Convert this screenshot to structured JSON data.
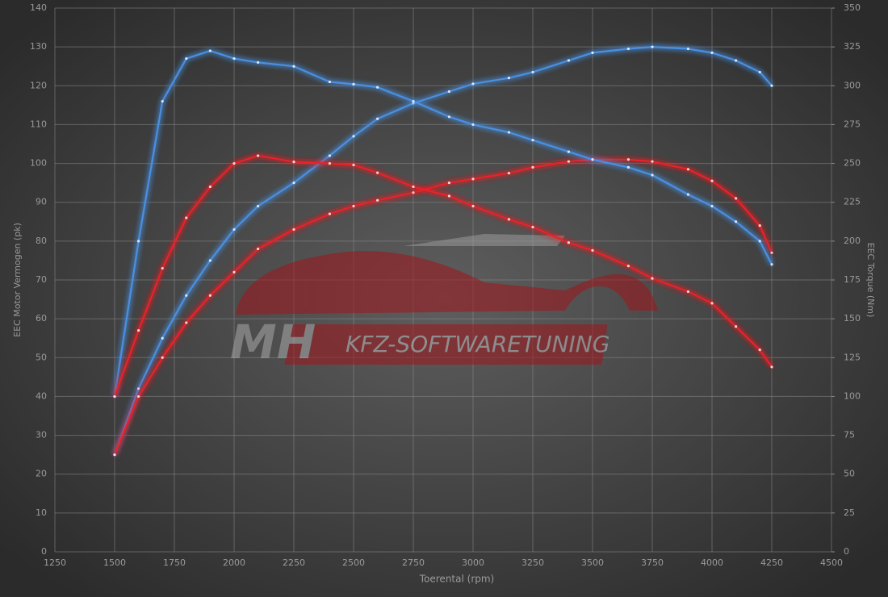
{
  "chart_data": {
    "type": "line",
    "x_label": "Toerental (rpm)",
    "y_label": "EEC Motor Vermogen (pk)",
    "y2_label": "EEC Torque (Nm)",
    "watermark": {
      "brand": "MH",
      "text": "KFZ-SOFTWARETUNING"
    },
    "x": [
      1500,
      1600,
      1700,
      1800,
      1900,
      2000,
      2100,
      2250,
      2400,
      2500,
      2600,
      2750,
      2900,
      3000,
      3150,
      3250,
      3400,
      3500,
      3650,
      3750,
      3900,
      4000,
      4100,
      4200,
      4250
    ],
    "series": [
      {
        "color": "#4a90e2",
        "values": [
          25,
          42,
          55,
          66,
          75,
          83,
          89,
          95,
          102,
          107,
          111.5,
          115.5,
          118.5,
          120.5,
          122,
          123.5,
          126.5,
          128.5,
          129.5,
          130,
          129.5,
          128.5,
          126.5,
          123.5,
          120
        ]
      },
      {
        "color": "#e8222a",
        "values": [
          25,
          40,
          50,
          59,
          66,
          72,
          78,
          83,
          87,
          89,
          90.5,
          92.5,
          95,
          96,
          97.5,
          99,
          100.5,
          101,
          101,
          100.5,
          98.5,
          95.5,
          91,
          84,
          77
        ]
      },
      {
        "color": "#4a90e2",
        "axis": "y2",
        "values": [
          100,
          200,
          290,
          317.5,
          322.5,
          317.5,
          315,
          312.5,
          302.5,
          301,
          299,
          290,
          280,
          275,
          270,
          265,
          257.5,
          252.5,
          247.5,
          242.5,
          230,
          222.5,
          212.5,
          200,
          185
        ]
      },
      {
        "color": "#e8222a",
        "axis": "y2",
        "values": [
          100,
          142.5,
          182.5,
          215,
          235,
          250,
          255,
          251,
          250,
          249,
          244,
          235,
          229,
          222.5,
          214,
          209,
          199,
          194,
          184,
          176,
          167.5,
          160,
          145,
          130,
          119
        ]
      }
    ],
    "xlim": [
      1250,
      4500
    ],
    "xticks": [
      1250,
      1500,
      1750,
      2000,
      2250,
      2500,
      2750,
      3000,
      3250,
      3500,
      3750,
      4000,
      4250,
      4500
    ],
    "ylim": [
      0,
      140
    ],
    "yticks": [
      0,
      10,
      20,
      30,
      40,
      50,
      60,
      70,
      80,
      90,
      100,
      110,
      120,
      130,
      140
    ],
    "y2lim": [
      0,
      350
    ],
    "y2ticks": [
      0,
      25,
      50,
      75,
      100,
      125,
      150,
      175,
      200,
      225,
      250,
      275,
      300,
      325,
      350
    ],
    "grid": true
  }
}
